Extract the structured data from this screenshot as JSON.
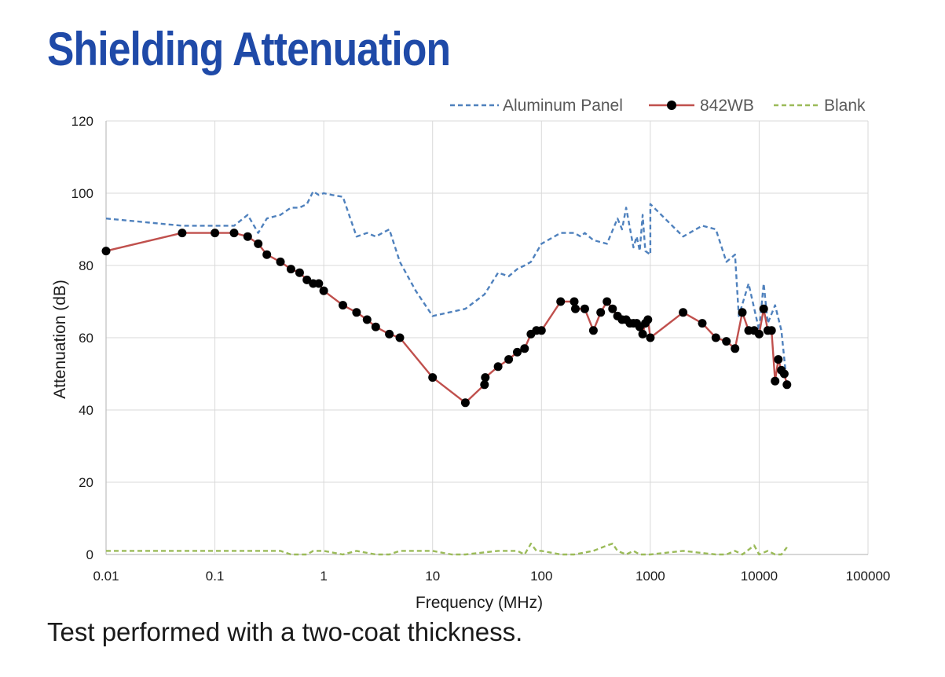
{
  "title": "Shielding Attenuation",
  "caption": "Test performed with a two-coat thickness.",
  "chart_data": {
    "type": "line",
    "xlabel": "Frequency (MHz)",
    "ylabel": "Attenuation (dB)",
    "x_scale": "log",
    "xlim": [
      0.01,
      100000
    ],
    "ylim": [
      0,
      120
    ],
    "x_ticks": [
      0.01,
      0.1,
      1,
      10,
      100,
      1000,
      10000,
      100000
    ],
    "x_tick_labels": [
      "0.01",
      "0.1",
      "1",
      "10",
      "100",
      "1000",
      "10000",
      "100000"
    ],
    "y_ticks": [
      0,
      20,
      40,
      60,
      80,
      100,
      120
    ],
    "y_tick_labels": [
      "0",
      "20",
      "40",
      "60",
      "80",
      "100",
      "120"
    ],
    "grid": true,
    "legend_position": "top-right",
    "series": [
      {
        "name": "Aluminum Panel",
        "color": "#4f81bd",
        "style": "dashed",
        "markers": false,
        "points": [
          [
            0.01,
            93
          ],
          [
            0.05,
            91
          ],
          [
            0.1,
            91
          ],
          [
            0.15,
            91
          ],
          [
            0.2,
            94
          ],
          [
            0.25,
            89
          ],
          [
            0.3,
            93
          ],
          [
            0.4,
            94
          ],
          [
            0.5,
            96
          ],
          [
            0.6,
            96
          ],
          [
            0.7,
            97
          ],
          [
            0.8,
            100.5
          ],
          [
            0.9,
            99.5
          ],
          [
            1,
            100
          ],
          [
            1.2,
            99.5
          ],
          [
            1.5,
            99
          ],
          [
            2,
            88
          ],
          [
            2.5,
            89
          ],
          [
            3,
            88
          ],
          [
            4,
            90
          ],
          [
            5,
            81
          ],
          [
            7,
            73
          ],
          [
            10,
            66
          ],
          [
            20,
            68
          ],
          [
            30,
            72
          ],
          [
            40,
            78
          ],
          [
            50,
            77
          ],
          [
            60,
            79
          ],
          [
            70,
            80
          ],
          [
            80,
            81
          ],
          [
            100,
            86
          ],
          [
            150,
            89
          ],
          [
            200,
            89
          ],
          [
            230,
            88
          ],
          [
            250,
            89
          ],
          [
            300,
            87
          ],
          [
            400,
            86
          ],
          [
            500,
            93
          ],
          [
            550,
            90
          ],
          [
            600,
            96
          ],
          [
            700,
            85
          ],
          [
            750,
            88
          ],
          [
            800,
            84
          ],
          [
            850,
            94
          ],
          [
            900,
            84
          ],
          [
            1000,
            83
          ],
          [
            1000.5,
            97
          ],
          [
            2000,
            88
          ],
          [
            3000,
            91
          ],
          [
            4000,
            90
          ],
          [
            5000,
            81
          ],
          [
            6000,
            83
          ],
          [
            6500,
            66
          ],
          [
            8000,
            75
          ],
          [
            10000,
            62
          ],
          [
            11000,
            75
          ],
          [
            12000,
            64
          ],
          [
            14000,
            69
          ],
          [
            16000,
            62
          ],
          [
            18000,
            47
          ]
        ]
      },
      {
        "name": "842WB",
        "color": "#c0504d",
        "marker_color": "#000000",
        "style": "solid",
        "markers": true,
        "points": [
          [
            0.01,
            84
          ],
          [
            0.05,
            89
          ],
          [
            0.1,
            89
          ],
          [
            0.15,
            89
          ],
          [
            0.2,
            88
          ],
          [
            0.25,
            86
          ],
          [
            0.3,
            83
          ],
          [
            0.4,
            81
          ],
          [
            0.5,
            79
          ],
          [
            0.6,
            78
          ],
          [
            0.7,
            76
          ],
          [
            0.8,
            75
          ],
          [
            0.9,
            75
          ],
          [
            1,
            73
          ],
          [
            1.5,
            69
          ],
          [
            2,
            67
          ],
          [
            2.5,
            65
          ],
          [
            3,
            63
          ],
          [
            4,
            61
          ],
          [
            5,
            60
          ],
          [
            10,
            49
          ],
          [
            20,
            42
          ],
          [
            30,
            47
          ],
          [
            30.5,
            49
          ],
          [
            40,
            52
          ],
          [
            50,
            54
          ],
          [
            60,
            56
          ],
          [
            70,
            57
          ],
          [
            80,
            61
          ],
          [
            90,
            62
          ],
          [
            100,
            62
          ],
          [
            150,
            70
          ],
          [
            200,
            70
          ],
          [
            205,
            68
          ],
          [
            250,
            68
          ],
          [
            300,
            62
          ],
          [
            350,
            67
          ],
          [
            400,
            70
          ],
          [
            450,
            68
          ],
          [
            500,
            66
          ],
          [
            550,
            65
          ],
          [
            600,
            65
          ],
          [
            650,
            64
          ],
          [
            700,
            64
          ],
          [
            750,
            64
          ],
          [
            800,
            63
          ],
          [
            850,
            61
          ],
          [
            900,
            64
          ],
          [
            950,
            65
          ],
          [
            1000,
            60
          ],
          [
            2000,
            67
          ],
          [
            3000,
            64
          ],
          [
            4000,
            60
          ],
          [
            5000,
            59
          ],
          [
            6000,
            57
          ],
          [
            7000,
            67
          ],
          [
            8000,
            62
          ],
          [
            9000,
            62
          ],
          [
            10000,
            61
          ],
          [
            11000,
            68
          ],
          [
            12000,
            62
          ],
          [
            13000,
            62
          ],
          [
            14000,
            48
          ],
          [
            15000,
            54
          ],
          [
            16000,
            51
          ],
          [
            17000,
            50
          ],
          [
            18000,
            47
          ]
        ]
      },
      {
        "name": "Blank",
        "color": "#9bbb59",
        "style": "dashed",
        "markers": false,
        "points": [
          [
            0.01,
            1
          ],
          [
            0.05,
            1
          ],
          [
            0.1,
            1
          ],
          [
            0.2,
            1
          ],
          [
            0.4,
            1
          ],
          [
            0.5,
            0
          ],
          [
            0.7,
            0
          ],
          [
            0.8,
            1
          ],
          [
            1,
            1
          ],
          [
            1.5,
            0
          ],
          [
            2,
            1
          ],
          [
            3,
            0
          ],
          [
            4,
            0
          ],
          [
            5,
            1
          ],
          [
            10,
            1
          ],
          [
            15,
            0
          ],
          [
            20,
            0
          ],
          [
            40,
            1
          ],
          [
            60,
            1
          ],
          [
            70,
            0
          ],
          [
            80,
            3
          ],
          [
            90,
            1
          ],
          [
            100,
            1
          ],
          [
            150,
            0
          ],
          [
            200,
            0
          ],
          [
            300,
            1
          ],
          [
            400,
            2.5
          ],
          [
            450,
            3
          ],
          [
            500,
            1
          ],
          [
            600,
            0
          ],
          [
            700,
            1
          ],
          [
            800,
            0
          ],
          [
            1000,
            0
          ],
          [
            2000,
            1
          ],
          [
            4000,
            0
          ],
          [
            5000,
            0
          ],
          [
            6000,
            1
          ],
          [
            7000,
            0
          ],
          [
            9000,
            2.5
          ],
          [
            10000,
            0
          ],
          [
            12000,
            1
          ],
          [
            14000,
            0
          ],
          [
            16000,
            0
          ],
          [
            18000,
            2
          ]
        ]
      }
    ]
  }
}
